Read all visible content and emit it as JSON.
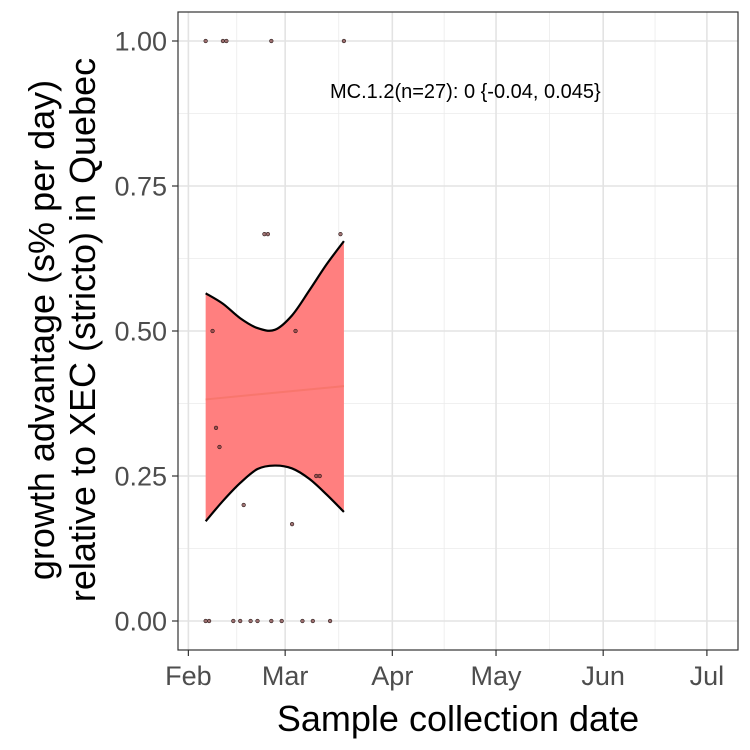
{
  "chart_data": {
    "type": "scatter",
    "xlabel": "Sample collection date",
    "ylabel_line1": "growth advantage (s% per day)",
    "ylabel_line2": "relative to XEC (stricto) in Quebec",
    "annotation": "MC.1.2(n=27): 0 {-0.04, 0.045}",
    "x_ticks": [
      {
        "label": "Feb",
        "date": "2025-02-01"
      },
      {
        "label": "Mar",
        "date": "2025-03-01"
      },
      {
        "label": "Apr",
        "date": "2025-04-01"
      },
      {
        "label": "May",
        "date": "2025-05-01"
      },
      {
        "label": "Jun",
        "date": "2025-06-01"
      },
      {
        "label": "Jul",
        "date": "2025-07-01"
      }
    ],
    "y_ticks": [
      "0.00",
      "0.25",
      "0.50",
      "0.75",
      "1.00"
    ],
    "xlim": [
      "2025-01-29",
      "2025-07-10"
    ],
    "ylim": [
      -0.05,
      1.05
    ],
    "grid": true,
    "colors": {
      "ribbon": "#ff7f7f",
      "fit_line": "#f8766d",
      "ribbon_edge": "#000000",
      "points": "#7a3b3b"
    },
    "points": [
      {
        "x": "2025-02-06",
        "y": 1.0
      },
      {
        "x": "2025-02-11",
        "y": 1.0
      },
      {
        "x": "2025-02-12",
        "y": 1.0
      },
      {
        "x": "2025-02-25",
        "y": 1.0
      },
      {
        "x": "2025-03-18",
        "y": 1.0
      },
      {
        "x": "2025-02-23",
        "y": 0.667
      },
      {
        "x": "2025-02-24",
        "y": 0.667
      },
      {
        "x": "2025-03-17",
        "y": 0.667
      },
      {
        "x": "2025-02-08",
        "y": 0.5
      },
      {
        "x": "2025-03-04",
        "y": 0.5
      },
      {
        "x": "2025-02-09",
        "y": 0.333
      },
      {
        "x": "2025-02-10",
        "y": 0.3
      },
      {
        "x": "2025-03-10",
        "y": 0.25
      },
      {
        "x": "2025-03-11",
        "y": 0.25
      },
      {
        "x": "2025-02-17",
        "y": 0.2
      },
      {
        "x": "2025-03-03",
        "y": 0.167
      },
      {
        "x": "2025-02-06",
        "y": 0.0
      },
      {
        "x": "2025-02-07",
        "y": 0.0
      },
      {
        "x": "2025-02-14",
        "y": 0.0
      },
      {
        "x": "2025-02-16",
        "y": 0.0
      },
      {
        "x": "2025-02-19",
        "y": 0.0
      },
      {
        "x": "2025-02-21",
        "y": 0.0
      },
      {
        "x": "2025-02-25",
        "y": 0.0
      },
      {
        "x": "2025-02-28",
        "y": 0.0
      },
      {
        "x": "2025-03-06",
        "y": 0.0
      },
      {
        "x": "2025-03-09",
        "y": 0.0
      },
      {
        "x": "2025-03-14",
        "y": 0.0
      }
    ],
    "fit": [
      {
        "x": "2025-02-06",
        "y": 0.382
      },
      {
        "x": "2025-03-18",
        "y": 0.405
      }
    ],
    "ribbon": [
      {
        "x": "2025-02-06",
        "lower": 0.172,
        "upper": 0.565
      },
      {
        "x": "2025-02-11",
        "lower": 0.207,
        "upper": 0.547
      },
      {
        "x": "2025-02-16",
        "lower": 0.238,
        "upper": 0.522
      },
      {
        "x": "2025-02-21",
        "lower": 0.262,
        "upper": 0.505
      },
      {
        "x": "2025-02-26",
        "lower": 0.268,
        "upper": 0.502
      },
      {
        "x": "2025-03-03",
        "lower": 0.263,
        "upper": 0.527
      },
      {
        "x": "2025-03-08",
        "lower": 0.245,
        "upper": 0.57
      },
      {
        "x": "2025-03-13",
        "lower": 0.218,
        "upper": 0.615
      },
      {
        "x": "2025-03-18",
        "lower": 0.188,
        "upper": 0.655
      }
    ]
  }
}
